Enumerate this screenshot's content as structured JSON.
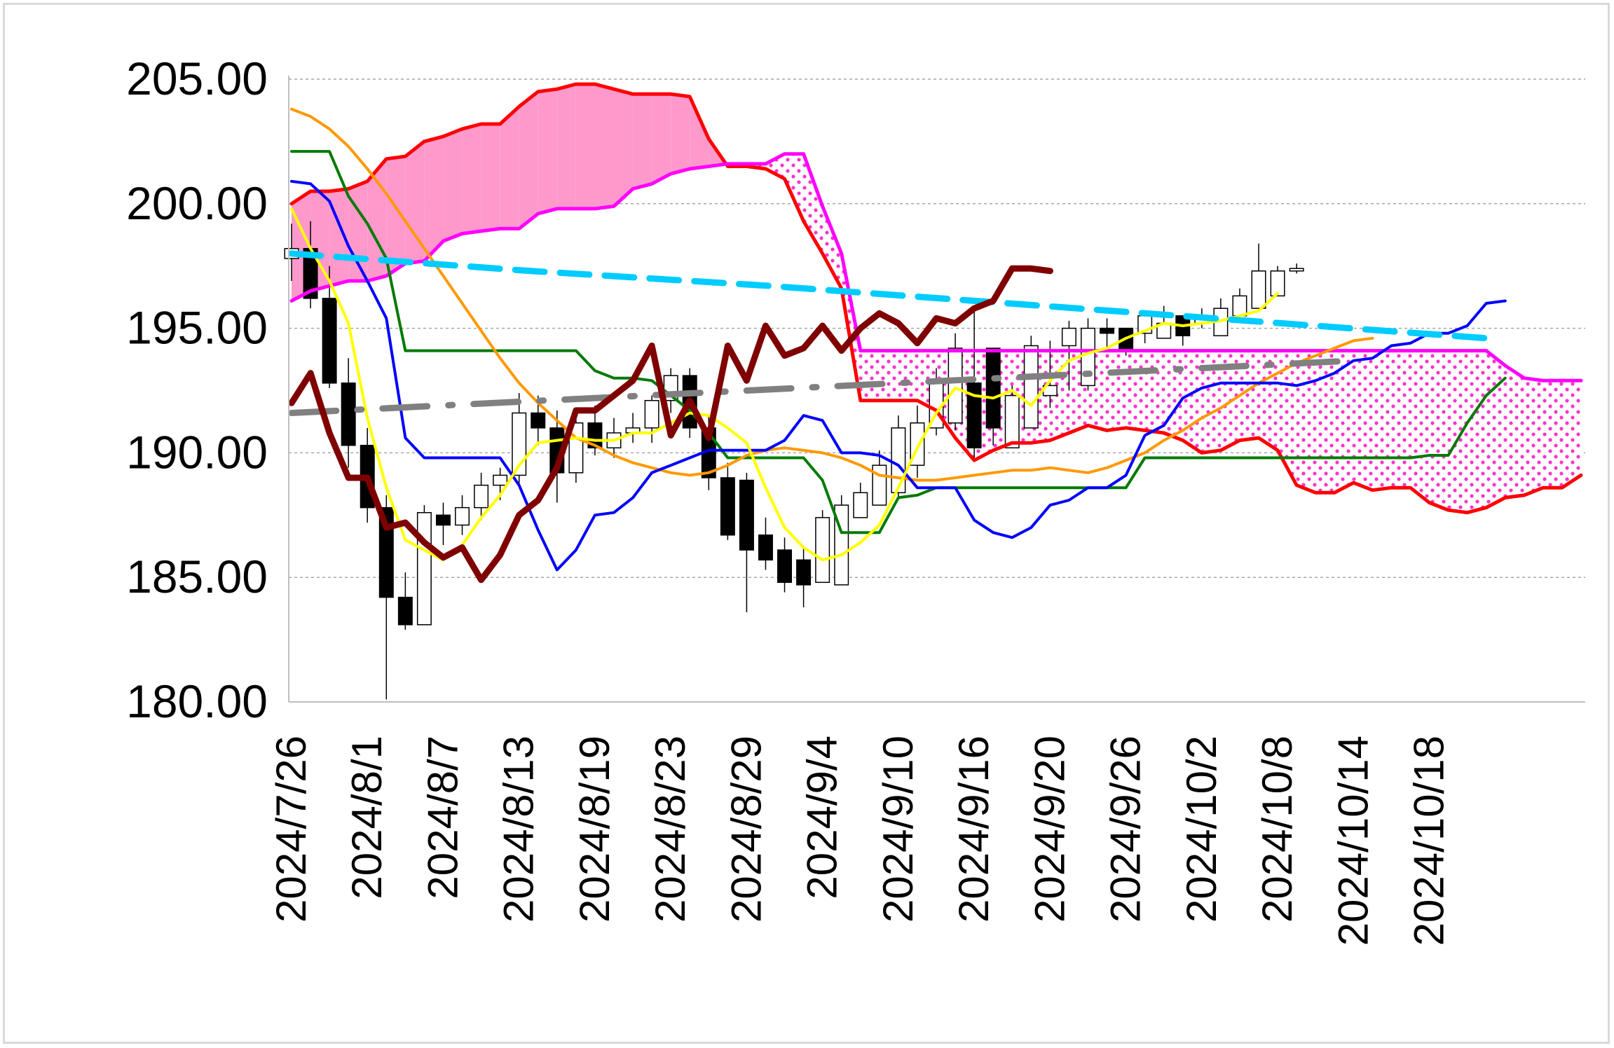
{
  "chart_data": {
    "type": "candlestick-ichimoku",
    "title": "",
    "xlabel": "",
    "ylabel": "",
    "ylim": [
      180,
      205
    ],
    "y_ticks": [
      "205.00",
      "200.00",
      "195.00",
      "190.00",
      "185.00",
      "180.00"
    ],
    "y_tick_values": [
      205,
      200,
      195,
      190,
      185,
      180
    ],
    "x_tick_labels": [
      "2024/7/26",
      "2024/8/1",
      "2024/8/7",
      "2024/8/13",
      "2024/8/19",
      "2024/8/23",
      "2024/8/29",
      "2024/9/4",
      "2024/9/10",
      "2024/9/16",
      "2024/9/20",
      "2024/9/26",
      "2024/10/2",
      "2024/10/8",
      "2024/10/14",
      "2024/10/18"
    ],
    "x_tick_index": [
      0,
      4,
      8,
      12,
      16,
      20,
      24,
      28,
      32,
      36,
      40,
      44,
      48,
      52,
      56,
      60
    ],
    "grid": "horizontal-dashed",
    "legend": "none",
    "candles": {
      "open": [
        197.8,
        198.2,
        196.2,
        192.8,
        190.3,
        187.8,
        184.2,
        183.1,
        187.5,
        187.1,
        187.8,
        188.7,
        189.1,
        191.6,
        191.0,
        189.2,
        191.2,
        190.2,
        190.8,
        191.0,
        192.1,
        193.1,
        191.0,
        189.0,
        188.9,
        186.7,
        186.1,
        185.7,
        184.8,
        184.7,
        187.4,
        187.9,
        188.4,
        189.5,
        191.0,
        191.2,
        192.8,
        194.2,
        190.2,
        191.0,
        192.3,
        194.3,
        192.7,
        195.0,
        195.0,
        194.8,
        194.6,
        195.5,
        195.2,
        194.7,
        195.5,
        195.8,
        196.3,
        197.3
      ],
      "close": [
        198.2,
        196.2,
        192.8,
        190.3,
        187.8,
        184.2,
        183.1,
        187.6,
        187.1,
        187.8,
        188.7,
        189.1,
        191.6,
        191.0,
        189.2,
        191.2,
        190.2,
        190.8,
        191.0,
        192.1,
        193.1,
        191.0,
        189.0,
        186.7,
        186.1,
        185.7,
        184.8,
        184.7,
        187.4,
        187.9,
        188.4,
        189.5,
        191.0,
        191.2,
        192.8,
        194.2,
        190.2,
        191.0,
        192.3,
        194.3,
        192.7,
        195.0,
        195.0,
        194.8,
        194.1,
        195.5,
        195.2,
        194.7,
        195.5,
        195.8,
        196.3,
        197.3,
        197.3,
        197.4
      ],
      "high": [
        199.2,
        199.3,
        197.5,
        193.8,
        191.0,
        188.3,
        185.2,
        187.9,
        188.0,
        188.3,
        189.2,
        189.4,
        192.4,
        192.3,
        191.7,
        191.8,
        191.9,
        191.4,
        191.6,
        192.3,
        193.4,
        193.4,
        191.5,
        189.6,
        189.2,
        187.4,
        186.6,
        186.2,
        187.7,
        188.3,
        188.8,
        190.1,
        191.5,
        191.9,
        193.4,
        194.8,
        195.8,
        191.5,
        192.7,
        194.7,
        194.5,
        195.3,
        195.4,
        195.4,
        195.0,
        195.7,
        195.9,
        195.2,
        195.8,
        196.2,
        196.6,
        198.4,
        197.5,
        197.6
      ],
      "low": [
        196.9,
        195.8,
        192.6,
        189.4,
        187.2,
        180.1,
        182.9,
        184.4,
        186.3,
        186.7,
        187.3,
        188.1,
        188.7,
        190.3,
        188.0,
        188.8,
        189.9,
        189.8,
        190.4,
        190.4,
        191.6,
        190.6,
        188.5,
        186.5,
        183.6,
        185.3,
        184.4,
        183.8,
        184.8,
        185.8,
        187.4,
        188.0,
        188.2,
        189.0,
        190.7,
        190.9,
        189.8,
        190.3,
        190.9,
        191.8,
        191.8,
        192.5,
        192.5,
        194.2,
        193.9,
        194.4,
        194.8,
        194.3,
        195.0,
        195.4,
        195.8,
        196.9,
        196.4,
        197.2
      ]
    },
    "series": [
      {
        "line": "red",
        "x_start": 0,
        "values": [
          200.0,
          200.5,
          200.5,
          200.6,
          200.9,
          201.8,
          201.9,
          202.5,
          202.7,
          203.0,
          203.2,
          203.2,
          203.9,
          204.5,
          204.6,
          204.8,
          204.8,
          204.6,
          204.4,
          204.4,
          204.4,
          204.3,
          202.6,
          201.5,
          201.5,
          201.4,
          201.0,
          199.3,
          198.0,
          196.6,
          192.1,
          192.1,
          192.1,
          192.1,
          191.7,
          190.6,
          189.7,
          190.1,
          190.4,
          190.4,
          190.5,
          190.8,
          191.1,
          190.9,
          191.0,
          190.9,
          190.8,
          190.5,
          190.0,
          190.1,
          190.5,
          190.6,
          190.1,
          188.7,
          188.4,
          188.4,
          188.8,
          188.5,
          188.6,
          188.6,
          188.0,
          187.7,
          187.6,
          187.8,
          188.2,
          188.3,
          188.6,
          188.6,
          189.1
        ]
      },
      {
        "line": "magenta",
        "x_start": 0,
        "values": [
          196.1,
          196.5,
          196.7,
          196.9,
          196.9,
          197.1,
          197.6,
          197.7,
          198.5,
          198.8,
          198.9,
          199.0,
          199.0,
          199.6,
          199.8,
          199.8,
          199.8,
          199.9,
          200.6,
          200.8,
          201.2,
          201.4,
          201.5,
          201.6,
          201.6,
          201.6,
          202.0,
          202.0,
          199.9,
          198.0,
          194.1,
          194.1,
          194.1,
          194.1,
          194.1,
          194.1,
          194.1,
          194.1,
          194.1,
          194.1,
          194.1,
          194.1,
          194.1,
          194.1,
          194.1,
          194.1,
          194.1,
          194.1,
          194.1,
          194.1,
          194.1,
          194.1,
          194.1,
          194.1,
          194.1,
          194.1,
          194.1,
          194.1,
          194.1,
          194.1,
          194.1,
          194.1,
          194.1,
          194.1,
          193.5,
          193.0,
          192.9,
          192.9,
          192.9
        ]
      },
      {
        "line": "blue",
        "x_start": 0,
        "values": [
          200.9,
          200.8,
          200.1,
          198.3,
          196.9,
          195.4,
          190.6,
          189.8,
          189.8,
          189.8,
          189.8,
          189.8,
          188.7,
          186.9,
          185.3,
          186.1,
          187.5,
          187.6,
          188.2,
          189.2,
          189.5,
          189.8,
          190.1,
          190.1,
          190.1,
          190.1,
          190.5,
          191.5,
          191.3,
          190.0,
          190.0,
          189.9,
          189.5,
          188.6,
          188.6,
          188.6,
          187.3,
          186.8,
          186.6,
          187.0,
          187.9,
          188.1,
          188.6,
          188.6,
          189.1,
          190.7,
          191.1,
          192.2,
          192.6,
          192.8,
          192.8,
          192.8,
          192.8,
          192.7,
          192.9,
          193.2,
          193.7,
          193.8,
          194.3,
          194.4,
          194.8,
          194.8,
          195.1,
          196.0,
          196.1
        ]
      },
      {
        "line": "green",
        "x_start": 0,
        "values": [
          202.1,
          202.1,
          202.1,
          200.3,
          199.2,
          197.8,
          194.1,
          194.1,
          194.1,
          194.1,
          194.1,
          194.1,
          194.1,
          194.1,
          194.1,
          194.1,
          193.3,
          193.0,
          193.0,
          192.9,
          192.3,
          191.7,
          190.8,
          189.8,
          189.8,
          189.8,
          189.8,
          189.8,
          188.9,
          186.8,
          186.8,
          186.8,
          188.2,
          188.3,
          188.6,
          188.6,
          188.6,
          188.6,
          188.6,
          188.6,
          188.6,
          188.6,
          188.6,
          188.6,
          188.6,
          189.8,
          189.8,
          189.8,
          189.8,
          189.8,
          189.8,
          189.8,
          189.8,
          189.8,
          189.8,
          189.8,
          189.8,
          189.8,
          189.8,
          189.8,
          189.9,
          189.9,
          191.2,
          192.3,
          193.0
        ]
      },
      {
        "line": "orange",
        "x_start": 0,
        "values": [
          203.8,
          203.5,
          203.0,
          202.3,
          201.4,
          200.4,
          199.3,
          198.2,
          197.1,
          196.0,
          194.9,
          193.8,
          192.8,
          192.0,
          191.3,
          190.6,
          190.3,
          189.9,
          189.6,
          189.4,
          189.2,
          189.1,
          189.2,
          189.5,
          189.9,
          190.1,
          190.2,
          190.1,
          190.0,
          189.8,
          189.5,
          189.1,
          189.0,
          188.9,
          188.9,
          189.0,
          189.1,
          189.2,
          189.3,
          189.3,
          189.4,
          189.3,
          189.2,
          189.4,
          189.7,
          190.0,
          190.5,
          190.9,
          191.4,
          191.8,
          192.3,
          192.8,
          193.2,
          193.6,
          193.9,
          194.2,
          194.5,
          194.6
        ]
      },
      {
        "line": "yellow",
        "x_start": 0,
        "values": [
          199.8,
          198.2,
          196.9,
          195.2,
          191.4,
          188.6,
          186.5,
          186.1,
          185.7,
          186.3,
          187.4,
          188.3,
          189.5,
          190.4,
          190.5,
          190.6,
          190.5,
          190.5,
          190.8,
          190.8,
          191.2,
          191.6,
          191.5,
          191.0,
          190.4,
          188.6,
          187.0,
          186.2,
          185.7,
          185.9,
          186.4,
          187.1,
          188.6,
          190.2,
          191.6,
          192.6,
          192.3,
          192.2,
          192.5,
          191.9,
          192.9,
          193.7,
          194.0,
          194.2,
          194.6,
          194.9,
          195.2,
          195.1,
          195.2,
          195.3,
          195.5,
          195.7,
          196.4
        ]
      },
      {
        "line": "maroon",
        "x_start": 0,
        "values": [
          192.0,
          193.2,
          190.8,
          189.0,
          189.0,
          187.0,
          187.2,
          186.4,
          185.8,
          186.2,
          184.9,
          185.9,
          187.5,
          188.1,
          189.4,
          191.7,
          191.7,
          192.3,
          192.9,
          194.3,
          190.7,
          192.1,
          190.6,
          194.3,
          192.9,
          195.1,
          193.9,
          194.2,
          195.1,
          194.1,
          195.0,
          195.6,
          195.2,
          194.4,
          195.4,
          195.2,
          195.8,
          196.1,
          197.4,
          197.4,
          197.3
        ]
      },
      {
        "line": "cyan-dashed",
        "x_start": 0,
        "values": [
          198.0,
          197.3,
          196.7,
          196.0,
          195.3,
          194.6
        ]
      },
      {
        "line": "gray-dashdot",
        "x_start": 0,
        "values": [
          191.6,
          191.9,
          192.2,
          192.5,
          192.8,
          193.1,
          193.4,
          193.7
        ]
      }
    ],
    "cloud": {
      "span_a_line": "red",
      "span_b_line": "magenta",
      "fill_bullish": "#ff99cc",
      "fill_bearish": "dotted-magenta"
    }
  },
  "colors": {
    "red": "#ff0000",
    "magenta": "#ff00ff",
    "blue": "#0000ff",
    "green": "#007a00",
    "orange": "#ff9900",
    "yellow": "#ffff00",
    "maroon": "#7f0000",
    "cyan": "#00ccff",
    "gray": "#808080",
    "cloud_pink": "#ff99cc"
  }
}
